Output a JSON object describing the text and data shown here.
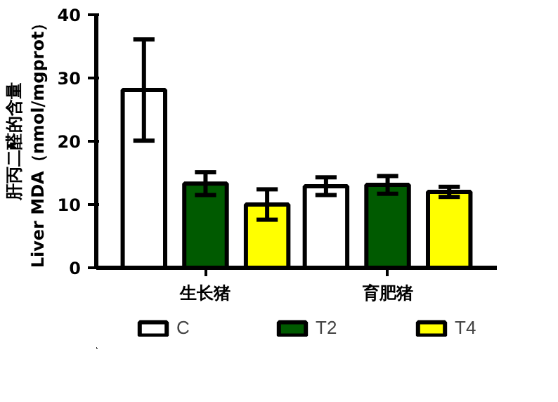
{
  "chart_data": {
    "type": "bar",
    "ylabel": "肝丙二醛的含量\nLiver MDA（nmol/mgprot）",
    "categories": [
      "生长猪",
      "育肥猪"
    ],
    "series": [
      {
        "name": "C",
        "color": "#ffffff",
        "values": [
          28.1,
          12.9
        ],
        "errors": [
          8.0,
          1.4
        ]
      },
      {
        "name": "T2",
        "color": "#005a00",
        "values": [
          13.3,
          13.1
        ],
        "errors": [
          1.8,
          1.4
        ]
      },
      {
        "name": "T4",
        "color": "#ffff00",
        "values": [
          10.0,
          12.0
        ],
        "errors": [
          2.4,
          0.8
        ]
      }
    ],
    "ylim": [
      0,
      40
    ],
    "yticks": [
      0,
      10,
      20,
      30,
      40
    ],
    "grid": false,
    "legend": "bottom"
  }
}
